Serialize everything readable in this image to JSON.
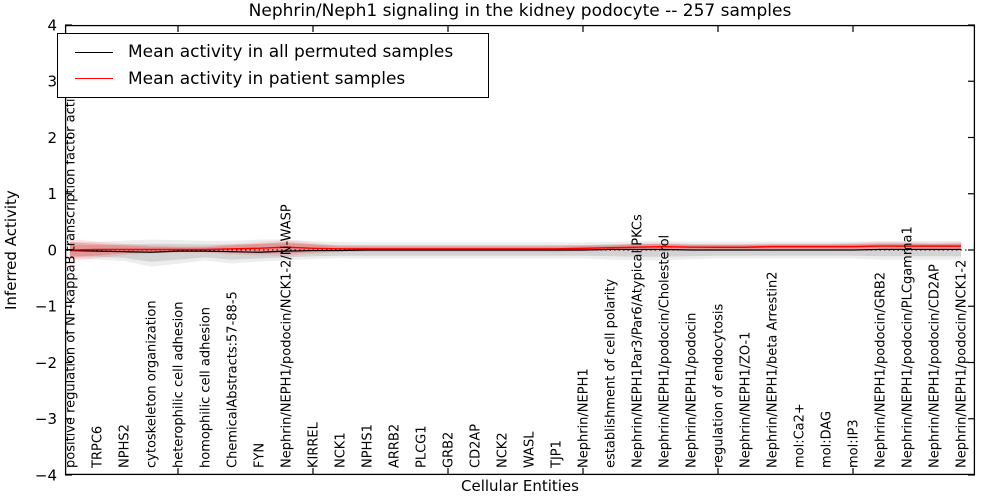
{
  "chart_data": {
    "type": "line",
    "title": "Nephrin/Neph1 signaling in the kidney podocyte -- 257 samples",
    "xlabel": "Cellular Entities",
    "ylabel": "Inferred Activity",
    "ylim": [
      -4,
      4
    ],
    "yticks": [
      4,
      3,
      2,
      1,
      0,
      -1,
      -2,
      -3,
      -4
    ],
    "grid": false,
    "zero_line_style": "dotted",
    "legend_position": "upper left",
    "categories": [
      "positive regulation of NF-kappaB transcription factor activity",
      "TRPC6",
      "NPHS2",
      "cytoskeleton organization",
      "heterophilic cell adhesion",
      "homophilic cell adhesion",
      "ChemicalAbstracts:57-88-5",
      "FYN",
      "Nephrin/NEPH1/podocin/NCK1-2/N-WASP",
      "KIRREL",
      "NCK1",
      "NPHS1",
      "ARRB2",
      "PLCG1",
      "GRB2",
      "CD2AP",
      "NCK2",
      "WASL",
      "TJP1",
      "Nephrin/NEPH1",
      "establishment of cell polarity",
      "Nephrin/NEPH1Par3/Par6/Atypical PKCs",
      "Nephrin/NEPH1/podocin/Cholesterol",
      "Nephrin/NEPH1/podocin",
      "regulation of endocytosis",
      "Nephrin/NEPH1/ZO-1",
      "Nephrin/NEPH1/beta Arrestin2",
      "mol:Ca2+",
      "mol:DAG",
      "mol:IP3",
      "Nephrin/NEPH1/podocin/GRB2",
      "Nephrin/NEPH1/podocin/PLCgamma1",
      "Nephrin/NEPH1/podocin/CD2AP",
      "Nephrin/NEPH1/podocin/NCK1-2"
    ],
    "series": [
      {
        "name": "Mean activity in all permuted samples",
        "color": "#000000",
        "band_color": "#bbbbbb",
        "values": [
          -0.01,
          -0.02,
          -0.03,
          -0.04,
          -0.02,
          -0.02,
          -0.03,
          -0.04,
          -0.02,
          -0.01,
          -0.01,
          0,
          0,
          0,
          0,
          0,
          0,
          0,
          0,
          0,
          0.01,
          0.01,
          0.01,
          0,
          0,
          0,
          0,
          0,
          0,
          0,
          0.01,
          0.01,
          0.01,
          0.01
        ],
        "band_low": [
          -0.1,
          -0.12,
          -0.14,
          -0.21,
          -0.17,
          -0.13,
          -0.17,
          -0.15,
          -0.13,
          -0.11,
          -0.1,
          -0.1,
          -0.1,
          -0.1,
          -0.1,
          -0.1,
          -0.1,
          -0.1,
          -0.1,
          -0.1,
          -0.11,
          -0.12,
          -0.12,
          -0.11,
          -0.1,
          -0.1,
          -0.1,
          -0.1,
          -0.1,
          -0.1,
          -0.11,
          -0.11,
          -0.11,
          -0.11
        ],
        "band_high": [
          0.09,
          0.09,
          0.1,
          0.11,
          0.11,
          0.1,
          0.1,
          0.11,
          0.12,
          0.1,
          0.09,
          0.09,
          0.09,
          0.09,
          0.09,
          0.09,
          0.09,
          0.09,
          0.09,
          0.09,
          0.1,
          0.11,
          0.11,
          0.1,
          0.1,
          0.1,
          0.1,
          0.1,
          0.1,
          0.1,
          0.11,
          0.11,
          0.11,
          0.11
        ]
      },
      {
        "name": "Mean activity in patient samples",
        "color": "#ff0000",
        "band_color": "#ff9999",
        "values": [
          0.0,
          0.01,
          0.01,
          0.01,
          0.01,
          0.01,
          0.02,
          0.03,
          0.05,
          0.03,
          0.02,
          0.02,
          0.02,
          0.02,
          0.02,
          0.02,
          0.02,
          0.02,
          0.02,
          0.03,
          0.04,
          0.05,
          0.06,
          0.05,
          0.05,
          0.05,
          0.06,
          0.06,
          0.06,
          0.06,
          0.07,
          0.07,
          0.07,
          0.07
        ],
        "band_low": [
          -0.14,
          -0.1,
          -0.06,
          -0.04,
          -0.03,
          -0.03,
          -0.05,
          -0.06,
          -0.06,
          -0.04,
          -0.02,
          -0.02,
          -0.02,
          -0.02,
          -0.02,
          -0.02,
          -0.02,
          -0.02,
          -0.02,
          -0.01,
          0.0,
          0.0,
          0.01,
          0.01,
          0.01,
          0.01,
          0.02,
          0.02,
          0.02,
          0.02,
          0.02,
          0.02,
          0.02,
          0.02
        ],
        "band_high": [
          0.14,
          0.11,
          0.08,
          0.06,
          0.05,
          0.05,
          0.08,
          0.11,
          0.14,
          0.1,
          0.06,
          0.06,
          0.06,
          0.06,
          0.06,
          0.06,
          0.06,
          0.06,
          0.06,
          0.07,
          0.08,
          0.1,
          0.11,
          0.09,
          0.09,
          0.09,
          0.1,
          0.1,
          0.1,
          0.11,
          0.12,
          0.12,
          0.11,
          0.12
        ]
      }
    ]
  }
}
